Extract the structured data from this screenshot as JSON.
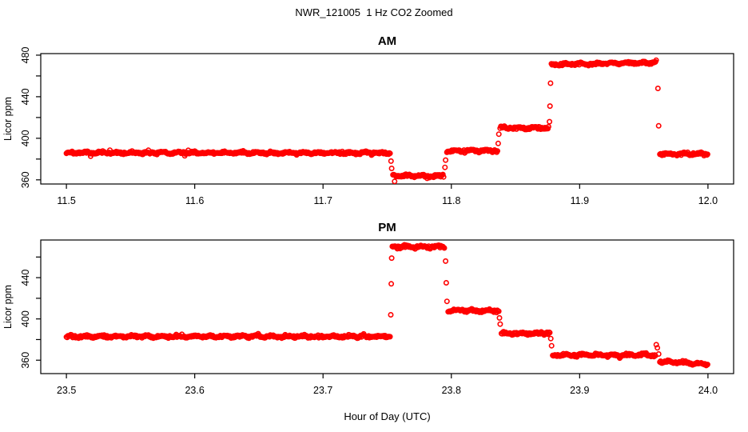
{
  "title": "NWR_121005  1 Hz CO2 Zoomed",
  "xlabel": "Hour of Day (UTC)",
  "point_color": "#ff0000",
  "axis_color": "#000000",
  "chart_data": [
    {
      "type": "scatter",
      "title": "AM",
      "ylabel": "Licor ppm",
      "marker": "open-circle",
      "sample_rate_hz": 1,
      "legend": "none",
      "grid": "off",
      "xlim": [
        11.48,
        12.02
      ],
      "ylim": [
        356,
        481.5
      ],
      "xticks": [
        11.5,
        11.6,
        11.7,
        11.8,
        11.9,
        12.0
      ],
      "xtick_labels": [
        "11.5",
        "11.6",
        "11.7",
        "11.8",
        "11.9",
        "12.0"
      ],
      "yticks": [
        360,
        380,
        400,
        420,
        440,
        460,
        480
      ],
      "ytick_labels": [
        "360",
        "",
        "400",
        "",
        "440",
        "",
        "480"
      ],
      "plateaus": [
        {
          "x0": 11.5,
          "x1": 11.7525,
          "y0": 386,
          "y1": 386
        },
        {
          "x0": 11.7545,
          "x1": 11.7945,
          "y0": 364,
          "y1": 364
        },
        {
          "x0": 11.7965,
          "x1": 11.836,
          "y0": 388,
          "y1": 388
        },
        {
          "x0": 11.838,
          "x1": 11.876,
          "y0": 410,
          "y1": 410
        },
        {
          "x0": 11.878,
          "x1": 11.96,
          "y0": 471,
          "y1": 473
        },
        {
          "x0": 11.9625,
          "x1": 12.0,
          "y0": 385,
          "y1": 385
        }
      ],
      "transition_points": [
        [
          11.753,
          378
        ],
        [
          11.7535,
          371
        ],
        [
          11.7558,
          358.5
        ],
        [
          11.795,
          372
        ],
        [
          11.7955,
          379
        ],
        [
          11.8365,
          395
        ],
        [
          11.837,
          404
        ],
        [
          11.8765,
          416
        ],
        [
          11.8769,
          431
        ],
        [
          11.8773,
          453
        ],
        [
          11.961,
          448
        ],
        [
          11.9616,
          412
        ]
      ]
    },
    {
      "type": "scatter",
      "title": "PM",
      "ylabel": "Licor ppm",
      "marker": "open-circle",
      "sample_rate_hz": 1,
      "legend": "none",
      "grid": "off",
      "xlim": [
        23.48,
        24.02
      ],
      "ylim": [
        347,
        476.5
      ],
      "xticks": [
        23.5,
        23.6,
        23.7,
        23.8,
        23.9,
        24.0
      ],
      "xtick_labels": [
        "23.5",
        "23.6",
        "23.7",
        "23.8",
        "23.9",
        "24.0"
      ],
      "yticks": [
        360,
        380,
        400,
        420,
        440,
        460
      ],
      "ytick_labels": [
        "360",
        "",
        "400",
        "",
        "440",
        ""
      ],
      "plateaus": [
        {
          "x0": 23.5,
          "x1": 23.7525,
          "y0": 383,
          "y1": 383
        },
        {
          "x0": 23.754,
          "x1": 23.795,
          "y0": 470,
          "y1": 470
        },
        {
          "x0": 23.7975,
          "x1": 23.837,
          "y0": 408,
          "y1": 408
        },
        {
          "x0": 23.839,
          "x1": 23.877,
          "y0": 386,
          "y1": 386
        },
        {
          "x0": 23.879,
          "x1": 23.959,
          "y0": 365,
          "y1": 365
        },
        {
          "x0": 23.9625,
          "x1": 24.0,
          "y0": 359,
          "y1": 356
        }
      ],
      "transition_points": [
        [
          23.7528,
          404
        ],
        [
          23.7532,
          434
        ],
        [
          23.7535,
          459
        ],
        [
          23.7955,
          456
        ],
        [
          23.796,
          435
        ],
        [
          23.7966,
          417
        ],
        [
          23.8375,
          401
        ],
        [
          23.8381,
          395
        ],
        [
          23.8775,
          381
        ],
        [
          23.8781,
          374
        ],
        [
          23.9597,
          375
        ],
        [
          23.9606,
          372
        ],
        [
          23.9616,
          366
        ]
      ]
    }
  ]
}
